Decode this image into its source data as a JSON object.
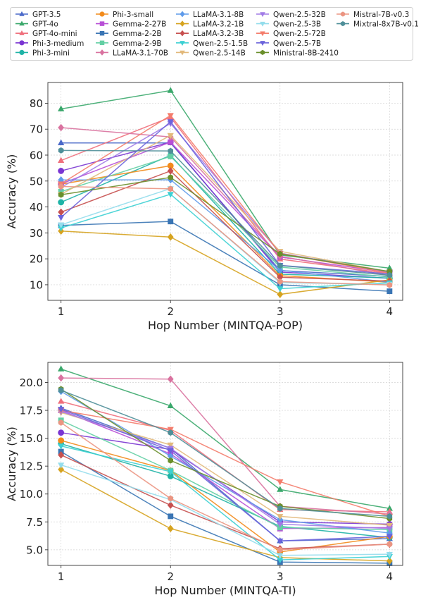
{
  "legend": {
    "items": [
      {
        "name": "GPT-3.5",
        "color": "#4a69c9",
        "marker": "triangle-up"
      },
      {
        "name": "GPT-4o",
        "color": "#3aa86b",
        "marker": "triangle-up"
      },
      {
        "name": "GPT-4o-mini",
        "color": "#ef6f7c",
        "marker": "triangle-up"
      },
      {
        "name": "Phi-3-medium",
        "color": "#7a35d2",
        "marker": "circle"
      },
      {
        "name": "Phi-3-mini",
        "color": "#1eb3a6",
        "marker": "circle"
      },
      {
        "name": "Phi-3-small",
        "color": "#f28b1c",
        "marker": "circle"
      },
      {
        "name": "Gemma-2-27B",
        "color": "#b84fd6",
        "marker": "square"
      },
      {
        "name": "Gemma-2-2B",
        "color": "#3a75b4",
        "marker": "square"
      },
      {
        "name": "Gemma-2-9B",
        "color": "#63cfa4",
        "marker": "square"
      },
      {
        "name": "LLaMA-3.1-70B",
        "color": "#d9729f",
        "marker": "diamond"
      },
      {
        "name": "LLaMA-3.1-8B",
        "color": "#5f9bea",
        "marker": "diamond"
      },
      {
        "name": "LLaMA-3.2-1B",
        "color": "#d6a31f",
        "marker": "diamond"
      },
      {
        "name": "LLaMA-3.2-3B",
        "color": "#c7504f",
        "marker": "diamond"
      },
      {
        "name": "Qwen-2.5-1.5B",
        "color": "#3cd0d3",
        "marker": "triangle-down"
      },
      {
        "name": "Qwen-2.5-14B",
        "color": "#e2b97b",
        "marker": "triangle-down"
      },
      {
        "name": "Qwen-2.5-32B",
        "color": "#a17be6",
        "marker": "triangle-down"
      },
      {
        "name": "Qwen-2.5-3B",
        "color": "#94ddec",
        "marker": "triangle-down"
      },
      {
        "name": "Qwen-2.5-72B",
        "color": "#f47c6b",
        "marker": "triangle-down"
      },
      {
        "name": "Qwen-2.5-7B",
        "color": "#6b63db",
        "marker": "triangle-down"
      },
      {
        "name": "Ministral-8B-2410",
        "color": "#6a8f2b",
        "marker": "hexagon"
      },
      {
        "name": "Mistral-7B-v0.3",
        "color": "#eb9582",
        "marker": "hexagon"
      },
      {
        "name": "Mixtral-8x7B-v0.1",
        "color": "#4f8f99",
        "marker": "hexagon"
      }
    ]
  },
  "chart_data": [
    {
      "type": "line",
      "xlabel": "Hop Number (MINTQA-POP)",
      "ylabel": "Accuracy (%)",
      "x": [
        1,
        2,
        3,
        4
      ],
      "xticks": [
        "1",
        "2",
        "3",
        "4"
      ],
      "ylim": [
        4,
        88
      ],
      "yticks": [
        10,
        20,
        30,
        40,
        50,
        60,
        70,
        80
      ],
      "ytick_labels": [
        "10",
        "20",
        "30",
        "40",
        "50",
        "60",
        "70",
        "80"
      ],
      "grid": true,
      "series": [
        {
          "name": "GPT-3.5",
          "values": [
            64.7,
            64.7,
            15.5,
            13.2
          ]
        },
        {
          "name": "GPT-4o",
          "values": [
            77.8,
            84.9,
            21.5,
            16.4
          ]
        },
        {
          "name": "GPT-4o-mini",
          "values": [
            57.9,
            74.6,
            19.9,
            14.3
          ]
        },
        {
          "name": "Phi-3-medium",
          "values": [
            53.9,
            65.0,
            14.9,
            12.5
          ]
        },
        {
          "name": "Phi-3-mini",
          "values": [
            41.8,
            59.9,
            14.1,
            12.6
          ]
        },
        {
          "name": "Phi-3-small",
          "values": [
            48.8,
            55.9,
            13.5,
            11.0
          ]
        },
        {
          "name": "Gemma-2-27B",
          "values": [
            48.9,
            65.0,
            20.7,
            14.7
          ]
        },
        {
          "name": "Gemma-2-2B",
          "values": [
            32.9,
            34.4,
            10.0,
            7.5
          ]
        },
        {
          "name": "Gemma-2-9B",
          "values": [
            45.9,
            59.5,
            16.8,
            13.0
          ]
        },
        {
          "name": "LLaMA-3.1-70B",
          "values": [
            70.6,
            67.0,
            21.0,
            13.5
          ]
        },
        {
          "name": "LLaMA-3.1-8B",
          "values": [
            50.4,
            50.5,
            15.6,
            11.0
          ]
        },
        {
          "name": "LLaMA-3.2-1B",
          "values": [
            30.7,
            28.4,
            6.3,
            11.9
          ]
        },
        {
          "name": "LLaMA-3.2-3B",
          "values": [
            38.0,
            53.9,
            12.9,
            11.4
          ]
        },
        {
          "name": "Qwen-2.5-1.5B",
          "values": [
            31.9,
            44.9,
            8.5,
            10.8
          ]
        },
        {
          "name": "Qwen-2.5-14B",
          "values": [
            44.9,
            67.6,
            22.9,
            15.0
          ]
        },
        {
          "name": "Qwen-2.5-32B",
          "values": [
            47.5,
            72.2,
            22.2,
            14.9
          ]
        },
        {
          "name": "Qwen-2.5-3B",
          "values": [
            33.1,
            47.1,
            10.8,
            10.2
          ]
        },
        {
          "name": "Qwen-2.5-72B",
          "values": [
            48.9,
            75.3,
            22.1,
            14.5
          ]
        },
        {
          "name": "Qwen-2.5-7B",
          "values": [
            36.0,
            72.9,
            17.5,
            14.2
          ]
        },
        {
          "name": "Ministral-8B-2410",
          "values": [
            44.7,
            51.4,
            21.9,
            15.1
          ]
        },
        {
          "name": "Mistral-7B-v0.3",
          "values": [
            47.9,
            47.0,
            11.2,
            9.9
          ]
        },
        {
          "name": "Mixtral-8x7B-v0.1",
          "values": [
            61.8,
            61.6,
            17.4,
            13.7
          ]
        }
      ]
    },
    {
      "type": "line",
      "xlabel": "Hop Number (MINTQA-TI)",
      "ylabel": "Accuracy (%)",
      "x": [
        1,
        2,
        3,
        4
      ],
      "xticks": [
        "1",
        "2",
        "3",
        "4"
      ],
      "ylim": [
        3.6,
        21.8
      ],
      "yticks": [
        5.0,
        7.5,
        10.0,
        12.5,
        15.0,
        17.5,
        20.0
      ],
      "ytick_labels": [
        "5.0",
        "7.5",
        "10.0",
        "12.5",
        "15.0",
        "17.5",
        "20.0"
      ],
      "grid": true,
      "series": [
        {
          "name": "GPT-3.5",
          "values": [
            17.7,
            14.1,
            5.8,
            6.0
          ]
        },
        {
          "name": "GPT-4o",
          "values": [
            21.2,
            17.9,
            10.4,
            8.7
          ]
        },
        {
          "name": "GPT-4o-mini",
          "values": [
            18.3,
            15.7,
            8.6,
            8.4
          ]
        },
        {
          "name": "Phi-3-medium",
          "values": [
            15.5,
            14.0,
            7.5,
            7.3
          ]
        },
        {
          "name": "Phi-3-mini",
          "values": [
            14.5,
            11.6,
            7.1,
            6.1
          ]
        },
        {
          "name": "Phi-3-small",
          "values": [
            14.8,
            12.1,
            4.8,
            6.2
          ]
        },
        {
          "name": "Gemma-2-27B",
          "values": [
            17.5,
            13.6,
            6.9,
            7.0
          ]
        },
        {
          "name": "Gemma-2-2B",
          "values": [
            13.8,
            8.0,
            3.9,
            3.8
          ]
        },
        {
          "name": "Gemma-2-9B",
          "values": [
            16.6,
            12.1,
            7.0,
            6.8
          ]
        },
        {
          "name": "LLaMA-3.1-70B",
          "values": [
            20.4,
            20.3,
            8.9,
            8.2
          ]
        },
        {
          "name": "LLaMA-3.1-8B",
          "values": [
            19.2,
            13.4,
            7.7,
            6.5
          ]
        },
        {
          "name": "LLaMA-3.2-1B",
          "values": [
            12.2,
            6.9,
            4.3,
            4.0
          ]
        },
        {
          "name": "LLaMA-3.2-3B",
          "values": [
            13.5,
            9.0,
            5.1,
            5.5
          ]
        },
        {
          "name": "Qwen-2.5-1.5B",
          "values": [
            14.3,
            12.0,
            4.1,
            4.4
          ]
        },
        {
          "name": "Qwen-2.5-14B",
          "values": [
            17.3,
            14.4,
            8.0,
            7.2
          ]
        },
        {
          "name": "Qwen-2.5-32B",
          "values": [
            17.4,
            14.1,
            7.3,
            6.9
          ]
        },
        {
          "name": "Qwen-2.5-3B",
          "values": [
            12.6,
            9.5,
            4.5,
            4.6
          ]
        },
        {
          "name": "Qwen-2.5-72B",
          "values": [
            17.5,
            15.8,
            11.1,
            8.0
          ]
        },
        {
          "name": "Qwen-2.5-7B",
          "values": [
            17.6,
            13.9,
            5.8,
            6.2
          ]
        },
        {
          "name": "Ministral-8B-2410",
          "values": [
            19.4,
            13.0,
            8.9,
            7.8
          ]
        },
        {
          "name": "Mistral-7B-v0.3",
          "values": [
            16.4,
            9.6,
            5.0,
            5.5
          ]
        },
        {
          "name": "Mixtral-8x7B-v0.1",
          "values": [
            19.3,
            15.5,
            8.7,
            8.0
          ]
        }
      ]
    }
  ]
}
